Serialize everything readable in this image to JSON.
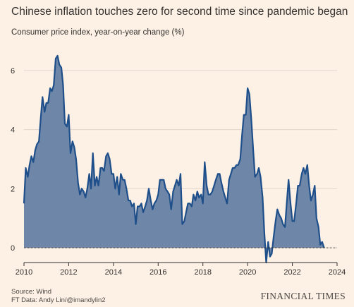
{
  "title": "Chinese inflation touches zero for second time since pandemic began",
  "subtitle": "Consumer price index, year-on-year change (%)",
  "source": "Source: Wind",
  "credit": "FT Data: Andy Lin/@imandylin2",
  "brand": "FINANCIAL TIMES",
  "colors": {
    "background": "#fdf1e5",
    "line": "#1f4f8a",
    "fill": "#6e87a8",
    "grid": "#e0d6cc",
    "axis": "#33302e"
  },
  "chart_data": {
    "type": "area",
    "title": "Chinese inflation touches zero for second time since pandemic began",
    "ylabel": "Consumer price index, year-on-year change (%)",
    "xlabel": "",
    "xlim": [
      2010,
      2024
    ],
    "ylim": [
      -0.5,
      7
    ],
    "x_ticks": [
      "2010",
      "2012",
      "2014",
      "2016",
      "2018",
      "2020",
      "2022",
      "2024"
    ],
    "y_ticks": [
      "0",
      "2",
      "4",
      "6"
    ],
    "grid": true,
    "series": [
      {
        "x": [
          2010.0,
          2010.08,
          2010.17,
          2010.25,
          2010.33,
          2010.42,
          2010.5,
          2010.58,
          2010.67,
          2010.75,
          2010.83,
          2010.92,
          2011.0,
          2011.08,
          2011.17,
          2011.25,
          2011.33,
          2011.42,
          2011.5,
          2011.58,
          2011.67,
          2011.75,
          2011.83,
          2011.92,
          2012.0,
          2012.08,
          2012.17,
          2012.25,
          2012.33,
          2012.42,
          2012.5,
          2012.58,
          2012.67,
          2012.75,
          2012.83,
          2012.92,
          2013.0,
          2013.08,
          2013.17,
          2013.25,
          2013.33,
          2013.42,
          2013.5,
          2013.58,
          2013.67,
          2013.75,
          2013.83,
          2013.92,
          2014.0,
          2014.08,
          2014.17,
          2014.25,
          2014.33,
          2014.42,
          2014.5,
          2014.58,
          2014.67,
          2014.75,
          2014.83,
          2014.92,
          2015.0,
          2015.08,
          2015.17,
          2015.25,
          2015.33,
          2015.42,
          2015.5,
          2015.58,
          2015.67,
          2015.75,
          2015.83,
          2015.92,
          2016.0,
          2016.08,
          2016.17,
          2016.25,
          2016.33,
          2016.42,
          2016.5,
          2016.58,
          2016.67,
          2016.75,
          2016.83,
          2016.92,
          2017.0,
          2017.08,
          2017.17,
          2017.25,
          2017.33,
          2017.42,
          2017.5,
          2017.58,
          2017.67,
          2017.75,
          2017.83,
          2017.92,
          2018.0,
          2018.08,
          2018.17,
          2018.25,
          2018.33,
          2018.42,
          2018.5,
          2018.58,
          2018.67,
          2018.75,
          2018.83,
          2018.92,
          2019.0,
          2019.08,
          2019.17,
          2019.25,
          2019.33,
          2019.42,
          2019.5,
          2019.58,
          2019.67,
          2019.75,
          2019.83,
          2019.92,
          2020.0,
          2020.08,
          2020.17,
          2020.25,
          2020.33,
          2020.42,
          2020.5,
          2020.58,
          2020.67,
          2020.75,
          2020.83,
          2020.92,
          2021.0,
          2021.08,
          2021.17,
          2021.25,
          2021.33,
          2021.42,
          2021.5,
          2021.58,
          2021.67,
          2021.75,
          2021.83,
          2021.92,
          2022.0,
          2022.08,
          2022.17,
          2022.25,
          2022.33,
          2022.42,
          2022.5,
          2022.58,
          2022.67,
          2022.75,
          2022.83,
          2022.92,
          2023.0,
          2023.08,
          2023.17,
          2023.25,
          2023.33,
          2023.42
        ],
        "values": [
          1.5,
          2.7,
          2.4,
          2.8,
          3.1,
          2.9,
          3.3,
          3.5,
          3.6,
          4.4,
          5.1,
          4.6,
          4.9,
          4.9,
          5.4,
          5.3,
          5.5,
          6.4,
          6.5,
          6.2,
          6.1,
          5.5,
          4.2,
          4.1,
          4.5,
          3.2,
          3.6,
          3.4,
          3.0,
          2.2,
          1.8,
          2.0,
          1.9,
          1.7,
          2.0,
          2.5,
          2.0,
          3.2,
          2.1,
          2.4,
          2.1,
          2.7,
          2.7,
          2.6,
          3.1,
          3.2,
          3.0,
          2.5,
          2.5,
          2.0,
          2.4,
          1.8,
          2.5,
          2.3,
          2.3,
          2.0,
          1.6,
          1.6,
          1.4,
          1.5,
          0.8,
          1.4,
          1.4,
          1.5,
          1.2,
          1.4,
          1.6,
          2.0,
          1.6,
          1.3,
          1.5,
          1.6,
          1.8,
          2.3,
          2.3,
          2.3,
          2.0,
          1.9,
          1.8,
          1.3,
          1.9,
          2.1,
          2.3,
          2.1,
          2.5,
          0.8,
          0.9,
          1.2,
          1.5,
          1.5,
          1.4,
          1.8,
          1.6,
          1.9,
          1.7,
          1.8,
          1.5,
          2.9,
          2.1,
          1.8,
          1.8,
          1.9,
          2.1,
          2.3,
          2.5,
          2.5,
          2.2,
          1.9,
          1.7,
          1.5,
          2.3,
          2.5,
          2.7,
          2.7,
          2.8,
          2.8,
          3.0,
          3.8,
          4.5,
          4.5,
          5.4,
          5.2,
          4.3,
          3.3,
          2.4,
          2.5,
          2.7,
          2.4,
          1.7,
          0.5,
          -0.5,
          0.2,
          -0.3,
          -0.2,
          0.4,
          0.9,
          1.3,
          1.1,
          1.0,
          0.8,
          0.7,
          1.5,
          2.3,
          1.5,
          0.9,
          0.9,
          1.5,
          2.1,
          2.1,
          2.5,
          2.7,
          2.5,
          2.8,
          2.1,
          1.6,
          1.8,
          2.1,
          1.0,
          0.7,
          0.1,
          0.2,
          0.0
        ]
      }
    ]
  }
}
